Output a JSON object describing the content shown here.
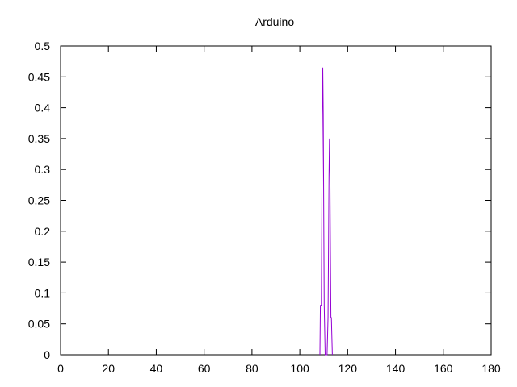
{
  "chart_data": {
    "type": "line",
    "title": "Arduino",
    "xlabel": "",
    "ylabel": "",
    "xlim": [
      0,
      180
    ],
    "ylim": [
      0,
      0.5
    ],
    "xticks": [
      0,
      20,
      40,
      60,
      80,
      100,
      120,
      140,
      160,
      180
    ],
    "yticks": [
      0,
      0.05,
      0.1,
      0.15,
      0.2,
      0.25,
      0.3,
      0.35,
      0.4,
      0.45,
      0.5
    ],
    "ytick_labels": [
      "0",
      "0.05",
      "0.1",
      "0.15",
      "0.2",
      "0.25",
      "0.3",
      "0.35",
      "0.4",
      "0.45",
      "0.5"
    ],
    "grid": false,
    "series": [
      {
        "color": "#9400d3",
        "x": [
          108.4,
          108.6,
          109.0,
          109.2,
          109.4,
          109.6,
          109.8,
          110.0,
          110.2,
          110.6,
          111.4,
          111.8,
          112.0,
          112.2,
          112.4,
          112.6,
          112.8,
          113.0,
          113.2,
          113.6
        ],
        "y": [
          0,
          0.08,
          0.08,
          0.23,
          0.39,
          0.465,
          0.39,
          0.23,
          0.08,
          0,
          0,
          0.06,
          0.17,
          0.29,
          0.35,
          0.29,
          0.17,
          0.06,
          0.06,
          0
        ]
      }
    ]
  }
}
